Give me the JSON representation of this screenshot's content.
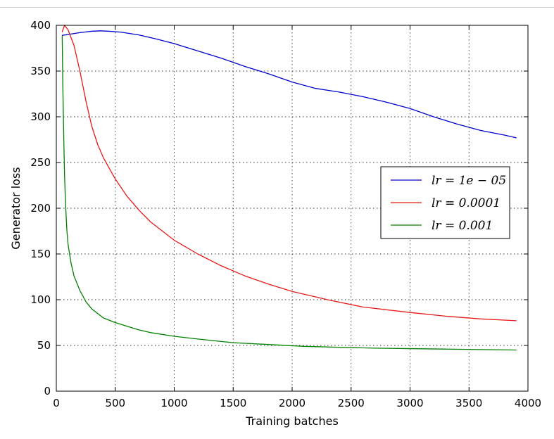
{
  "chart_data": {
    "type": "line",
    "title": "",
    "xlabel": "Training batches",
    "ylabel": "Generator loss",
    "xlim": [
      0,
      4000
    ],
    "ylim": [
      0,
      400
    ],
    "xticks": [
      0,
      500,
      1000,
      1500,
      2000,
      2500,
      3000,
      3500,
      4000
    ],
    "yticks": [
      0,
      50,
      100,
      150,
      200,
      250,
      300,
      350,
      400
    ],
    "xtick_labels": [
      "0",
      "500",
      "1000",
      "1500",
      "2000",
      "2500",
      "3000",
      "3500",
      "4000"
    ],
    "ytick_labels": [
      "0",
      "50",
      "100",
      "150",
      "200",
      "250",
      "300",
      "350",
      "400"
    ],
    "grid": true,
    "legend_position": "center-right",
    "series": [
      {
        "name": "lr = 1e − 05",
        "color": "#0000cc",
        "x": [
          50,
          100,
          200,
          300,
          370,
          450,
          550,
          700,
          850,
          1000,
          1200,
          1400,
          1600,
          1800,
          2000,
          2200,
          2400,
          2600,
          2800,
          3000,
          3200,
          3400,
          3600,
          3800,
          3900
        ],
        "y": [
          389,
          390,
          392,
          393.5,
          394,
          393.5,
          392.5,
          389.5,
          385,
          380,
          372,
          364,
          355,
          347,
          338,
          331,
          327,
          322,
          316,
          309,
          300,
          292,
          285,
          280,
          277
        ]
      },
      {
        "name": "lr = 0.0001",
        "color": "#e81919",
        "x": [
          50,
          70,
          100,
          150,
          200,
          250,
          300,
          350,
          400,
          500,
          600,
          700,
          800,
          1000,
          1200,
          1400,
          1600,
          1800,
          2000,
          2300,
          2600,
          3000,
          3300,
          3600,
          3900
        ],
        "y": [
          393,
          400,
          395,
          378,
          350,
          318,
          290,
          270,
          255,
          232,
          213,
          198,
          185,
          165,
          150,
          137,
          126,
          117,
          109,
          100,
          92,
          86,
          82,
          79,
          77
        ]
      },
      {
        "name": "lr = 0.001",
        "color": "#008000",
        "x": [
          50,
          55,
          60,
          65,
          70,
          80,
          90,
          100,
          125,
          150,
          200,
          250,
          300,
          400,
          500,
          600,
          700,
          800,
          1000,
          1200,
          1500,
          1800,
          2100,
          2400,
          2700,
          3000,
          3300,
          3600,
          3900
        ],
        "y": [
          388,
          335,
          300,
          265,
          235,
          200,
          175,
          160,
          140,
          126,
          110,
          98,
          90,
          80,
          75,
          71,
          67,
          64,
          60,
          57,
          53,
          51,
          49,
          48,
          47,
          46.5,
          46,
          45.5,
          45
        ]
      }
    ]
  }
}
